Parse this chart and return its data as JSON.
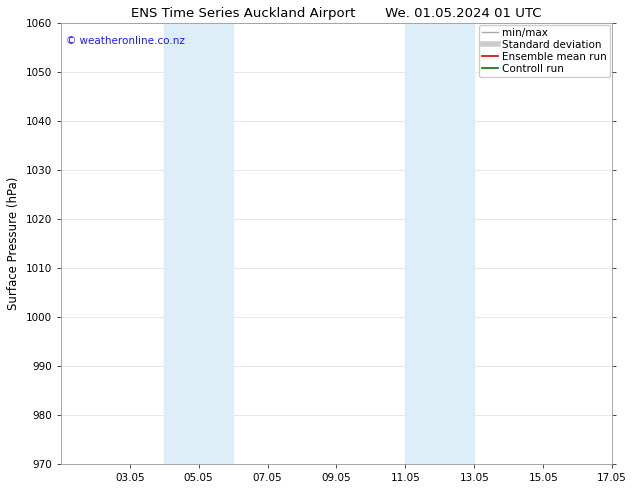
{
  "title_left": "ENS Time Series Auckland Airport",
  "title_right": "We. 01.05.2024 01 UTC",
  "ylabel": "Surface Pressure (hPa)",
  "ylim": [
    970,
    1060
  ],
  "yticks": [
    970,
    980,
    990,
    1000,
    1010,
    1020,
    1030,
    1040,
    1050,
    1060
  ],
  "xlim": [
    0,
    16
  ],
  "xtick_labels": [
    "03.05",
    "05.05",
    "07.05",
    "09.05",
    "11.05",
    "13.05",
    "15.05",
    "17.05"
  ],
  "xtick_positions": [
    2,
    4,
    6,
    8,
    10,
    12,
    14,
    16
  ],
  "shaded_regions": [
    {
      "x_start": 3.0,
      "x_end": 5.0,
      "color": "#ddeef8"
    },
    {
      "x_start": 10.0,
      "x_end": 12.0,
      "color": "#ddeef8"
    }
  ],
  "watermark_text": "© weatheronline.co.nz",
  "watermark_color": "#1a1aff",
  "legend_entries": [
    {
      "label": "min/max",
      "color": "#aaaaaa",
      "lw": 1.0
    },
    {
      "label": "Standard deviation",
      "color": "#cccccc",
      "lw": 4.0
    },
    {
      "label": "Ensemble mean run",
      "color": "#dd0000",
      "lw": 1.2
    },
    {
      "label": "Controll run",
      "color": "#007700",
      "lw": 1.2
    }
  ],
  "bg_color": "#ffffff",
  "grid_color": "#dddddd",
  "title_fontsize": 9.5,
  "axis_label_fontsize": 8.5,
  "tick_fontsize": 7.5,
  "watermark_fontsize": 7.5,
  "legend_fontsize": 7.5
}
